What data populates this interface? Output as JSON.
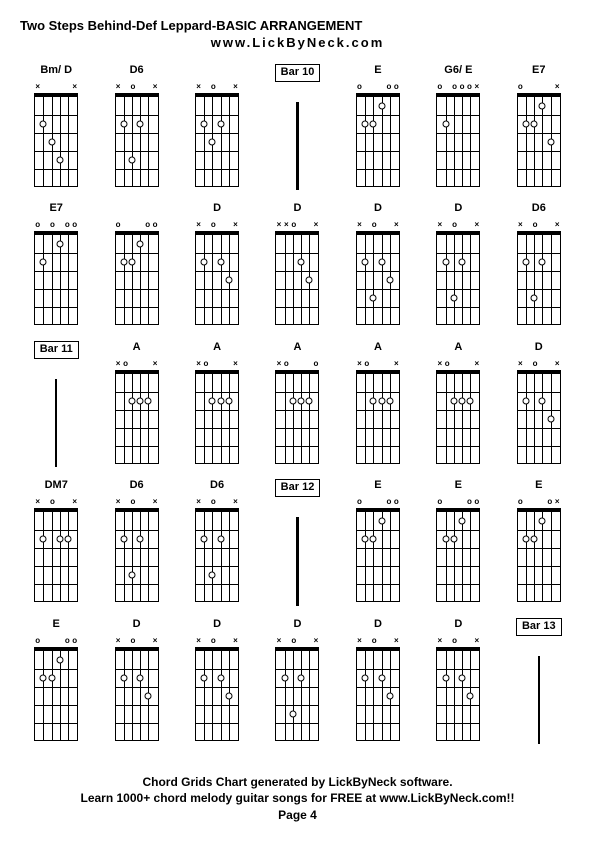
{
  "title": "Two Steps Behind-Def Leppard-BASIC ARRANGEMENT",
  "subtitle": "www.LickByNeck.com",
  "footer": {
    "line1": "Chord Grids Chart generated by LickByNeck software.",
    "line2": "Learn 1000+ chord melody guitar songs for FREE at www.LickByNeck.com!!",
    "line3": "Page 4"
  },
  "strings": 6,
  "frets": 5,
  "cells": [
    {
      "type": "chord",
      "label": "Bm/ D",
      "markers": [
        "x",
        "",
        "",
        "",
        "",
        "x"
      ],
      "dots": [
        {
          "s": 1,
          "f": 2
        },
        {
          "s": 2,
          "f": 3
        },
        {
          "s": 3,
          "f": 4
        }
      ]
    },
    {
      "type": "chord",
      "label": "D6",
      "markers": [
        "x",
        "",
        "o",
        "",
        "",
        "x"
      ],
      "dots": [
        {
          "s": 1,
          "f": 2
        },
        {
          "s": 3,
          "f": 2
        },
        {
          "s": 2,
          "f": 4
        }
      ]
    },
    {
      "type": "chord",
      "label": "",
      "markers": [
        "x",
        "",
        "o",
        "",
        "",
        "x"
      ],
      "dots": [
        {
          "s": 1,
          "f": 2
        },
        {
          "s": 2,
          "f": 3
        },
        {
          "s": 3,
          "f": 2
        }
      ]
    },
    {
      "type": "bar",
      "label": "Bar 10"
    },
    {
      "type": "chord",
      "label": "E",
      "markers": [
        "o",
        "",
        "",
        "",
        "o",
        "o"
      ],
      "dots": [
        {
          "s": 2,
          "f": 2
        },
        {
          "s": 1,
          "f": 2
        },
        {
          "s": 3,
          "f": 1
        }
      ]
    },
    {
      "type": "chord",
      "label": "G6/ E",
      "markers": [
        "o",
        "",
        "o",
        "o",
        "o",
        "x"
      ],
      "dots": [
        {
          "s": 1,
          "f": 2
        }
      ]
    },
    {
      "type": "chord",
      "label": "E7",
      "markers": [
        "o",
        "",
        "",
        "",
        "",
        "x"
      ],
      "dots": [
        {
          "s": 1,
          "f": 2
        },
        {
          "s": 2,
          "f": 2
        },
        {
          "s": 3,
          "f": 1
        },
        {
          "s": 4,
          "f": 3
        }
      ]
    },
    {
      "type": "chord",
      "label": "E7",
      "markers": [
        "o",
        "",
        "o",
        "",
        "o",
        "o"
      ],
      "dots": [
        {
          "s": 1,
          "f": 2
        },
        {
          "s": 3,
          "f": 1
        }
      ]
    },
    {
      "type": "chord",
      "label": "",
      "markers": [
        "o",
        "",
        "",
        "",
        "o",
        "o"
      ],
      "dots": [
        {
          "s": 1,
          "f": 2
        },
        {
          "s": 2,
          "f": 2
        },
        {
          "s": 3,
          "f": 1
        }
      ]
    },
    {
      "type": "chord",
      "label": "D",
      "markers": [
        "x",
        "",
        "o",
        "",
        "",
        "x"
      ],
      "dots": [
        {
          "s": 1,
          "f": 2
        },
        {
          "s": 3,
          "f": 2
        },
        {
          "s": 4,
          "f": 3
        }
      ]
    },
    {
      "type": "chord",
      "label": "D",
      "markers": [
        "x",
        "x",
        "o",
        "",
        "",
        "x"
      ],
      "dots": [
        {
          "s": 3,
          "f": 2
        },
        {
          "s": 4,
          "f": 3
        }
      ]
    },
    {
      "type": "chord",
      "label": "D",
      "markers": [
        "x",
        "",
        "o",
        "",
        "",
        "x"
      ],
      "dots": [
        {
          "s": 1,
          "f": 2
        },
        {
          "s": 3,
          "f": 2
        },
        {
          "s": 4,
          "f": 3
        },
        {
          "s": 2,
          "f": 4
        }
      ]
    },
    {
      "type": "chord",
      "label": "D",
      "markers": [
        "x",
        "",
        "o",
        "",
        "",
        "x"
      ],
      "dots": [
        {
          "s": 1,
          "f": 2
        },
        {
          "s": 3,
          "f": 2
        },
        {
          "s": 2,
          "f": 4
        }
      ]
    },
    {
      "type": "chord",
      "label": "D6",
      "markers": [
        "x",
        "",
        "o",
        "",
        "",
        "x"
      ],
      "dots": [
        {
          "s": 1,
          "f": 2
        },
        {
          "s": 3,
          "f": 2
        },
        {
          "s": 2,
          "f": 4
        }
      ]
    },
    {
      "type": "bar",
      "label": "Bar 11"
    },
    {
      "type": "chord",
      "label": "A",
      "markers": [
        "x",
        "o",
        "",
        "",
        "",
        "x"
      ],
      "dots": [
        {
          "s": 2,
          "f": 2
        },
        {
          "s": 3,
          "f": 2
        },
        {
          "s": 4,
          "f": 2
        }
      ]
    },
    {
      "type": "chord",
      "label": "A",
      "markers": [
        "x",
        "o",
        "",
        "",
        "",
        "x"
      ],
      "dots": [
        {
          "s": 2,
          "f": 2
        },
        {
          "s": 3,
          "f": 2
        },
        {
          "s": 4,
          "f": 2
        }
      ]
    },
    {
      "type": "chord",
      "label": "A",
      "markers": [
        "x",
        "o",
        "",
        "",
        "",
        "o"
      ],
      "dots": [
        {
          "s": 2,
          "f": 2
        },
        {
          "s": 3,
          "f": 2
        },
        {
          "s": 4,
          "f": 2
        }
      ]
    },
    {
      "type": "chord",
      "label": "A",
      "markers": [
        "x",
        "o",
        "",
        "",
        "",
        "x"
      ],
      "dots": [
        {
          "s": 2,
          "f": 2
        },
        {
          "s": 3,
          "f": 2
        },
        {
          "s": 4,
          "f": 2
        }
      ]
    },
    {
      "type": "chord",
      "label": "A",
      "markers": [
        "x",
        "o",
        "",
        "",
        "",
        "x"
      ],
      "dots": [
        {
          "s": 2,
          "f": 2
        },
        {
          "s": 3,
          "f": 2
        },
        {
          "s": 4,
          "f": 2
        }
      ]
    },
    {
      "type": "chord",
      "label": "D",
      "markers": [
        "x",
        "",
        "o",
        "",
        "",
        "x"
      ],
      "dots": [
        {
          "s": 1,
          "f": 2
        },
        {
          "s": 3,
          "f": 2
        },
        {
          "s": 4,
          "f": 3
        }
      ]
    },
    {
      "type": "chord",
      "label": "DM7",
      "markers": [
        "x",
        "",
        "o",
        "",
        "",
        "x"
      ],
      "dots": [
        {
          "s": 1,
          "f": 2
        },
        {
          "s": 3,
          "f": 2
        },
        {
          "s": 4,
          "f": 2
        }
      ]
    },
    {
      "type": "chord",
      "label": "D6",
      "markers": [
        "x",
        "",
        "o",
        "",
        "",
        "x"
      ],
      "dots": [
        {
          "s": 1,
          "f": 2
        },
        {
          "s": 3,
          "f": 2
        },
        {
          "s": 2,
          "f": 4
        }
      ]
    },
    {
      "type": "chord",
      "label": "D6",
      "markers": [
        "x",
        "",
        "o",
        "",
        "",
        "x"
      ],
      "dots": [
        {
          "s": 1,
          "f": 2
        },
        {
          "s": 3,
          "f": 2
        },
        {
          "s": 2,
          "f": 4
        }
      ]
    },
    {
      "type": "bar",
      "label": "Bar 12"
    },
    {
      "type": "chord",
      "label": "E",
      "markers": [
        "o",
        "",
        "",
        "",
        "o",
        "o"
      ],
      "dots": [
        {
          "s": 1,
          "f": 2
        },
        {
          "s": 2,
          "f": 2
        },
        {
          "s": 3,
          "f": 1
        }
      ]
    },
    {
      "type": "chord",
      "label": "E",
      "markers": [
        "o",
        "",
        "",
        "",
        "o",
        "o"
      ],
      "dots": [
        {
          "s": 1,
          "f": 2
        },
        {
          "s": 2,
          "f": 2
        },
        {
          "s": 3,
          "f": 1
        }
      ]
    },
    {
      "type": "chord",
      "label": "E",
      "markers": [
        "o",
        "",
        "",
        "",
        "o",
        "x"
      ],
      "dots": [
        {
          "s": 1,
          "f": 2
        },
        {
          "s": 2,
          "f": 2
        },
        {
          "s": 3,
          "f": 1
        }
      ]
    },
    {
      "type": "chord",
      "label": "E",
      "markers": [
        "o",
        "",
        "",
        "",
        "o",
        "o"
      ],
      "dots": [
        {
          "s": 1,
          "f": 2
        },
        {
          "s": 2,
          "f": 2
        },
        {
          "s": 3,
          "f": 1
        }
      ]
    },
    {
      "type": "chord",
      "label": "D",
      "markers": [
        "x",
        "",
        "o",
        "",
        "",
        "x"
      ],
      "dots": [
        {
          "s": 1,
          "f": 2
        },
        {
          "s": 3,
          "f": 2
        },
        {
          "s": 4,
          "f": 3
        }
      ]
    },
    {
      "type": "chord",
      "label": "D",
      "markers": [
        "x",
        "",
        "o",
        "",
        "",
        "x"
      ],
      "dots": [
        {
          "s": 1,
          "f": 2
        },
        {
          "s": 3,
          "f": 2
        },
        {
          "s": 4,
          "f": 3
        }
      ]
    },
    {
      "type": "chord",
      "label": "D",
      "markers": [
        "x",
        "",
        "o",
        "",
        "",
        "x"
      ],
      "dots": [
        {
          "s": 1,
          "f": 2
        },
        {
          "s": 3,
          "f": 2
        },
        {
          "s": 2,
          "f": 4
        }
      ]
    },
    {
      "type": "chord",
      "label": "D",
      "markers": [
        "x",
        "",
        "o",
        "",
        "",
        "x"
      ],
      "dots": [
        {
          "s": 1,
          "f": 2
        },
        {
          "s": 3,
          "f": 2
        },
        {
          "s": 4,
          "f": 3
        }
      ]
    },
    {
      "type": "chord",
      "label": "D",
      "markers": [
        "x",
        "",
        "o",
        "",
        "",
        "x"
      ],
      "dots": [
        {
          "s": 1,
          "f": 2
        },
        {
          "s": 3,
          "f": 2
        },
        {
          "s": 4,
          "f": 3
        }
      ]
    },
    {
      "type": "bar",
      "label": "Bar 13"
    }
  ]
}
